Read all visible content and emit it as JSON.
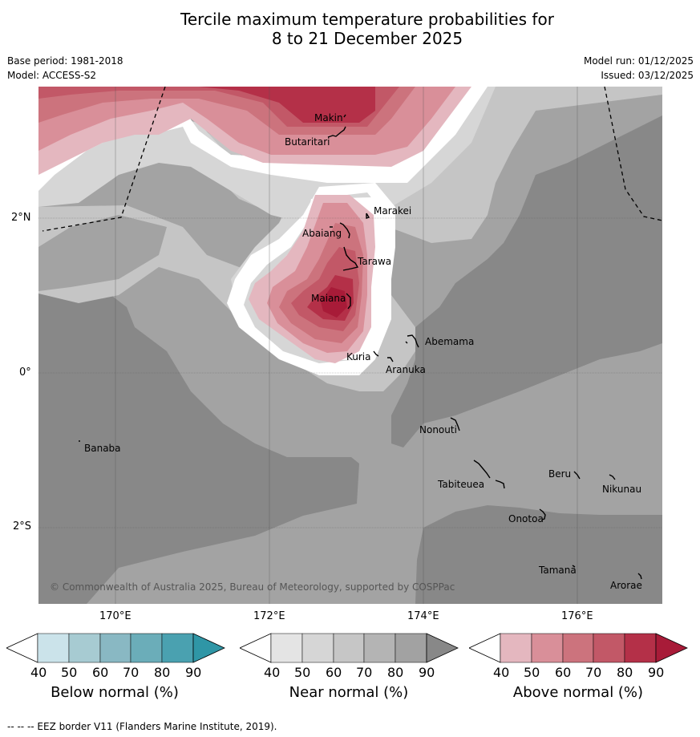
{
  "title": {
    "line1": "Tercile maximum temperature probabilities for",
    "line2": "8 to 21 December 2025"
  },
  "meta": {
    "base_period": "Base period: 1981-2018",
    "model": "Model: ACCESS-S2",
    "model_run": "Model run: 01/12/2025",
    "issued": "Issued: 03/12/2025"
  },
  "map": {
    "lat_labels": [
      "2°N",
      "0°",
      "2°S"
    ],
    "lon_labels": [
      "170°E",
      "172°E",
      "174°E",
      "176°E"
    ],
    "places": [
      {
        "name": "Makin"
      },
      {
        "name": "Butaritari"
      },
      {
        "name": "Marakei"
      },
      {
        "name": "Abaiang"
      },
      {
        "name": "Tarawa"
      },
      {
        "name": "Maiana"
      },
      {
        "name": "Abemama"
      },
      {
        "name": "Kuria"
      },
      {
        "name": "Aranuka"
      },
      {
        "name": "Nonouti"
      },
      {
        "name": "Banaba"
      },
      {
        "name": "Beru"
      },
      {
        "name": "Tabiteuea"
      },
      {
        "name": "Nikunau"
      },
      {
        "name": "Onotoa"
      },
      {
        "name": "Tamana"
      },
      {
        "name": "Arorae"
      }
    ],
    "copyright": "© Commonwealth of Australia 2025, Bureau of Meteorology, supported by COSPPac"
  },
  "legend": {
    "ticks": [
      "40",
      "50",
      "60",
      "70",
      "80",
      "90"
    ],
    "below": {
      "title": "Below normal (%)",
      "colors": [
        "#cbe3ea",
        "#a7cbd2",
        "#89b8c3",
        "#6badb9",
        "#4aa1b0",
        "#2f96a6"
      ]
    },
    "near": {
      "title": "Near normal (%)",
      "colors": [
        "#e4e4e4",
        "#d6d6d6",
        "#c6c6c6",
        "#b4b4b4",
        "#a2a2a2",
        "#888888"
      ]
    },
    "above": {
      "title": "Above normal (%)",
      "colors": [
        "#e4b7bf",
        "#d98f99",
        "#cc737d",
        "#c25867",
        "#b43048",
        "#a81b38"
      ]
    }
  },
  "footer": "--  --  -- EEZ border V11 (Flanders Marine Institute, 2019)."
}
